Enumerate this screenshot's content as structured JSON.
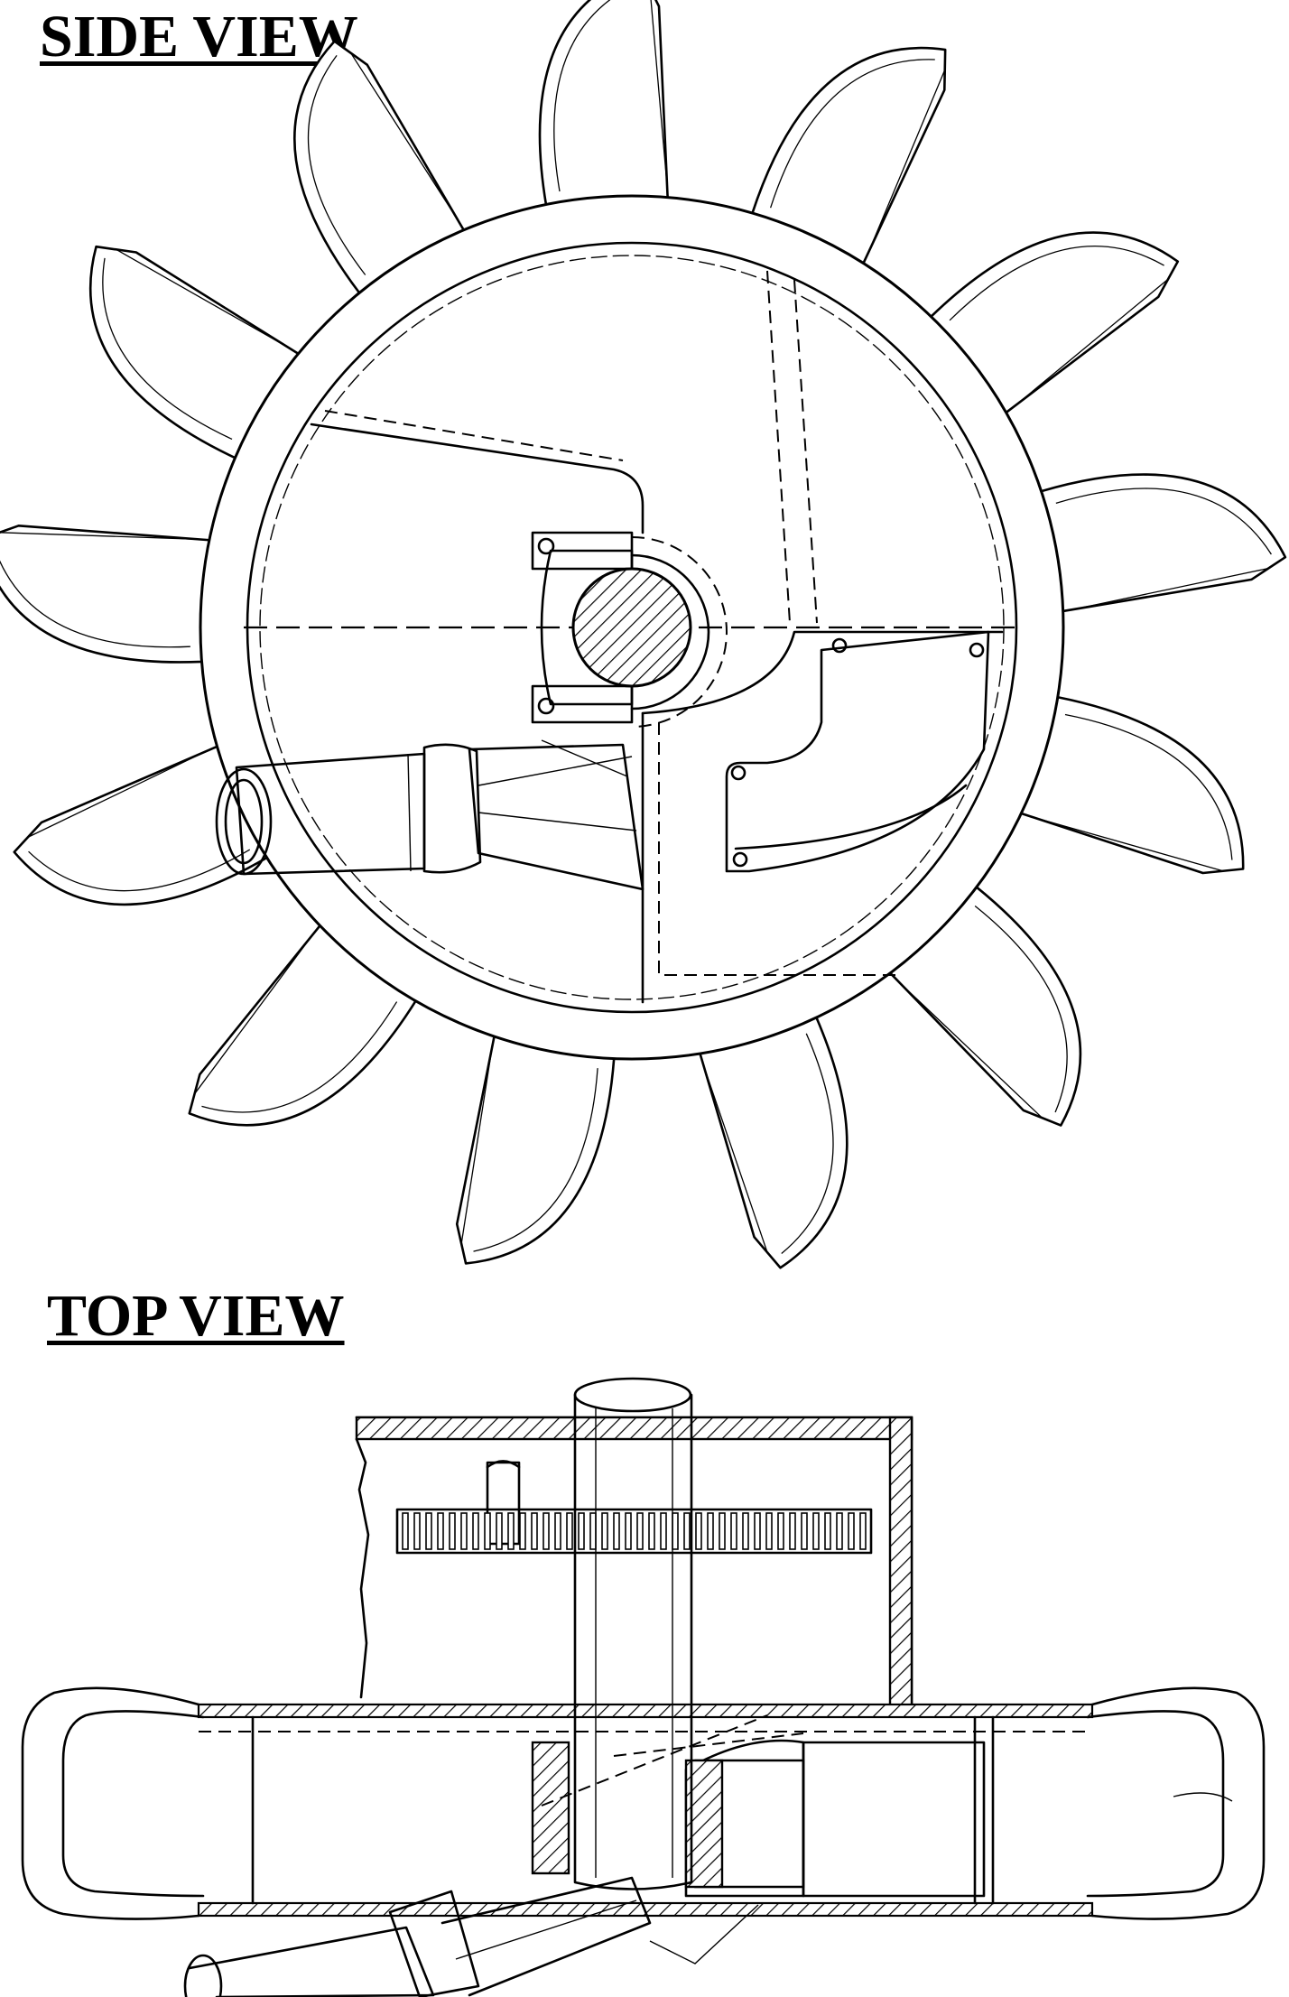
{
  "titles": {
    "side_view": "SIDE VIEW",
    "top_view": "TOP VIEW"
  },
  "colors": {
    "ink": "#000000",
    "paper": "#ffffff"
  },
  "side_view": {
    "bucket_count": 13
  }
}
